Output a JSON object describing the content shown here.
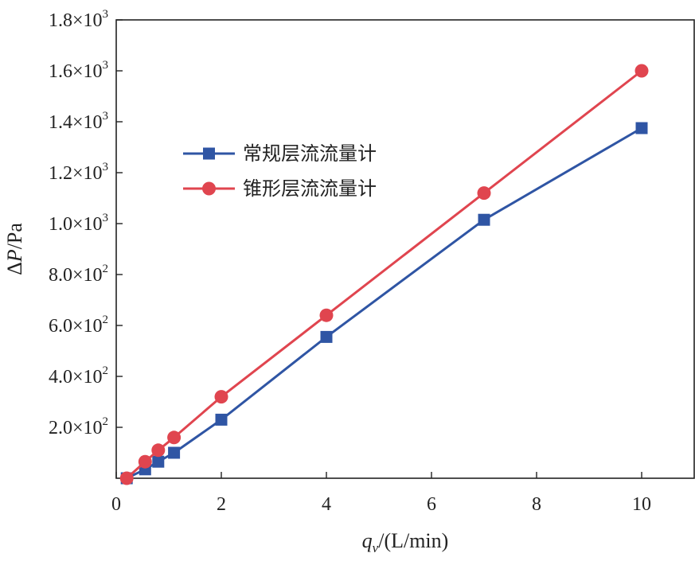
{
  "chart_data": {
    "type": "line",
    "xlabel": {
      "var": "q",
      "sub": "v",
      "unit": "/(L/min)"
    },
    "ylabel": {
      "prefix": "Δ",
      "var": "P",
      "unit": "/Pa"
    },
    "xlim": [
      0,
      11
    ],
    "ylim": [
      0,
      1800
    ],
    "x_ticks": [
      0,
      2,
      4,
      6,
      8,
      10
    ],
    "y_ticks": [
      {
        "value": 200,
        "mantissa": "2.0×10",
        "exp": "2"
      },
      {
        "value": 400,
        "mantissa": "4.0×10",
        "exp": "2"
      },
      {
        "value": 600,
        "mantissa": "6.0×10",
        "exp": "2"
      },
      {
        "value": 800,
        "mantissa": "8.0×10",
        "exp": "2"
      },
      {
        "value": 1000,
        "mantissa": "1.0×10",
        "exp": "3"
      },
      {
        "value": 1200,
        "mantissa": "1.2×10",
        "exp": "3"
      },
      {
        "value": 1400,
        "mantissa": "1.4×10",
        "exp": "3"
      },
      {
        "value": 1600,
        "mantissa": "1.6×10",
        "exp": "3"
      },
      {
        "value": 1800,
        "mantissa": "1.8×10",
        "exp": "3"
      }
    ],
    "grid": false,
    "legend_position": "upper-left inside",
    "series": [
      {
        "name": "常规层流流量计",
        "color": "#2f55a4",
        "marker": "square",
        "x": [
          0.2,
          0.55,
          0.8,
          1.1,
          2,
          4,
          7,
          10
        ],
        "y": [
          0,
          35,
          65,
          100,
          230,
          555,
          1015,
          1375
        ]
      },
      {
        "name": "锥形层流流量计",
        "color": "#e0454f",
        "marker": "circle",
        "x": [
          0.2,
          0.55,
          0.8,
          1.1,
          2,
          4,
          7,
          10
        ],
        "y": [
          0,
          65,
          110,
          160,
          320,
          640,
          1120,
          1600
        ]
      }
    ]
  }
}
